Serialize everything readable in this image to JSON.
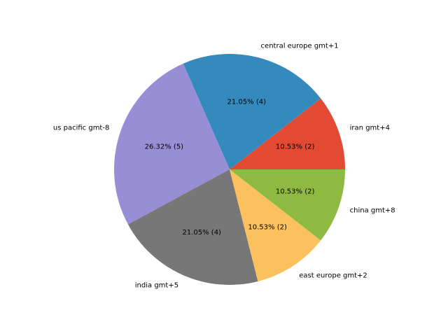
{
  "chart_data": {
    "type": "pie",
    "start_angle_deg": 0,
    "direction": "counterclockwise",
    "slices": [
      {
        "label": "iran gmt+4",
        "value": 2,
        "pct_label": "10.53%  (2)",
        "color": "#E24A33"
      },
      {
        "label": "central europe gmt+1",
        "value": 4,
        "pct_label": "21.05%  (4)",
        "color": "#348ABD"
      },
      {
        "label": "us pacific gmt-8",
        "value": 5,
        "pct_label": "26.32%  (5)",
        "color": "#988ED5"
      },
      {
        "label": "india gmt+5",
        "value": 4,
        "pct_label": "21.05%  (4)",
        "color": "#777777"
      },
      {
        "label": "east europe gmt+2",
        "value": 2,
        "pct_label": "10.53%  (2)",
        "color": "#FBC15E"
      },
      {
        "label": "china gmt+8",
        "value": 2,
        "pct_label": "10.53%  (2)",
        "color": "#8EBA42"
      }
    ]
  }
}
